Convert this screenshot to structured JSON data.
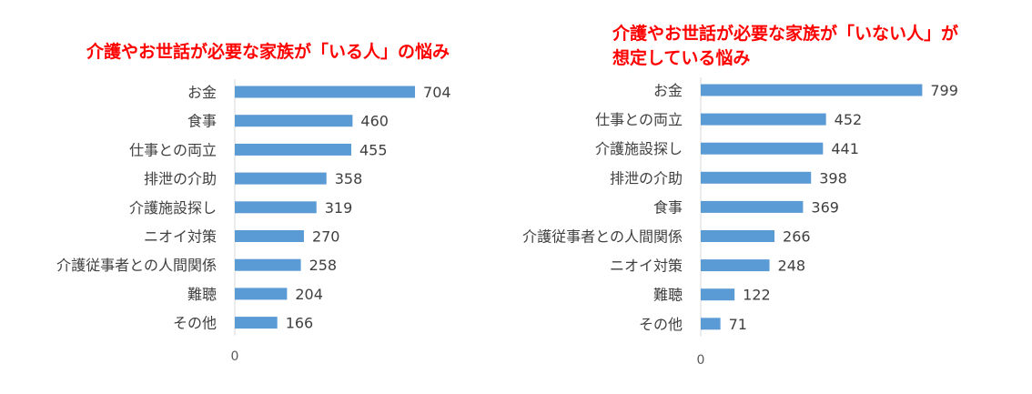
{
  "chart_data": [
    {
      "type": "bar",
      "orientation": "horizontal",
      "title": "介護やお世話が必要な家族が「いる人」の悩み",
      "categories": [
        "お金",
        "食事",
        "仕事との両立",
        "排泄の介助",
        "介護施設探し",
        "ニオイ対策",
        "介護従事者との人間関係",
        "難聴",
        "その他"
      ],
      "values": [
        704,
        460,
        455,
        358,
        319,
        270,
        258,
        204,
        166
      ],
      "x_tick_labels": [
        "0"
      ],
      "xlim": [
        0,
        1000
      ],
      "bar_color": "#5b9bd5",
      "title_color": "#ff0000",
      "grid": false
    },
    {
      "type": "bar",
      "orientation": "horizontal",
      "title": "介護やお世話が必要な家族が「いない人」が\n想定している悩み",
      "categories": [
        "お金",
        "仕事との両立",
        "介護施設探し",
        "排泄の介助",
        "食事",
        "介護従事者との人間関係",
        "ニオイ対策",
        "難聴",
        "その他"
      ],
      "values": [
        799,
        452,
        441,
        398,
        369,
        266,
        248,
        122,
        71
      ],
      "x_tick_labels": [
        "0"
      ],
      "xlim": [
        0,
        1000
      ],
      "bar_color": "#5b9bd5",
      "title_color": "#ff0000",
      "grid": false
    }
  ]
}
